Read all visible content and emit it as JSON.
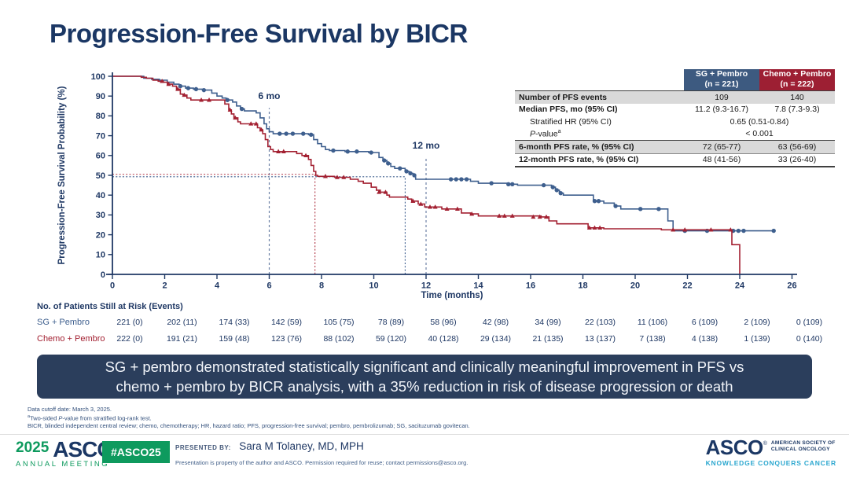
{
  "slide": {
    "title": "Progression-Free Survival by BICR"
  },
  "colors": {
    "navy": "#1f3864",
    "sg_blue": "#3e5f8e",
    "chemo_red": "#a32132",
    "banner_bg": "#2b3e5c",
    "asco_green": "#0e9a5e",
    "asco_teal": "#2ba7cf",
    "shade_gray": "#d9d9d9"
  },
  "chart_data": {
    "type": "line",
    "subtype": "kaplan-meier-step",
    "xlabel": "Time (months)",
    "ylabel": "Progression-Free Survival Probability (%)",
    "xlim": [
      0,
      26.5
    ],
    "ylim": [
      0,
      100
    ],
    "xticks": [
      0,
      2,
      4,
      6,
      8,
      10,
      12,
      14,
      16,
      18,
      20,
      22,
      24,
      26
    ],
    "yticks": [
      0,
      10,
      20,
      30,
      40,
      50,
      60,
      70,
      80,
      90,
      100
    ],
    "grid": false,
    "annotations": [
      {
        "label": "6 mo",
        "x": 6,
        "line_top": 84,
        "label_y": 88.5
      },
      {
        "label": "12 mo",
        "x": 12,
        "line_top": 59,
        "label_y": 63.5
      }
    ],
    "median_lines": [
      {
        "x": 7.75,
        "y": 50.5,
        "color": "#b03545",
        "series": "Chemo + Pembro",
        "median_months": 7.8
      },
      {
        "x": 11.2,
        "y": 49.3,
        "color": "#3e5f8e",
        "series": "SG + Pembro",
        "median_months": 11.2
      }
    ],
    "series": [
      {
        "id": "sg-pembro",
        "name": "SG + Pembro",
        "color": "#3e5f8e",
        "marker": "circle",
        "steps": [
          [
            0,
            100
          ],
          [
            1.2,
            99
          ],
          [
            1.5,
            98.5
          ],
          [
            1.8,
            98
          ],
          [
            2.1,
            97
          ],
          [
            2.35,
            96
          ],
          [
            2.55,
            95
          ],
          [
            2.8,
            94
          ],
          [
            3.1,
            93.5
          ],
          [
            3.45,
            93
          ],
          [
            3.8,
            91.5
          ],
          [
            4.0,
            90
          ],
          [
            4.2,
            89
          ],
          [
            4.35,
            88
          ],
          [
            4.6,
            87
          ],
          [
            4.75,
            85
          ],
          [
            4.9,
            83.5
          ],
          [
            5.05,
            82.5
          ],
          [
            5.5,
            81.5
          ],
          [
            5.65,
            79
          ],
          [
            5.8,
            76
          ],
          [
            5.9,
            73.5
          ],
          [
            6.0,
            72
          ],
          [
            6.15,
            71
          ],
          [
            7.5,
            70.5
          ],
          [
            7.7,
            68
          ],
          [
            7.85,
            66
          ],
          [
            8.0,
            64.5
          ],
          [
            8.15,
            63
          ],
          [
            8.3,
            62.5
          ],
          [
            8.9,
            62
          ],
          [
            9.8,
            61.5
          ],
          [
            10.2,
            59
          ],
          [
            10.35,
            57.5
          ],
          [
            10.5,
            56
          ],
          [
            10.65,
            54.5
          ],
          [
            10.8,
            53.5
          ],
          [
            11.2,
            52
          ],
          [
            11.35,
            51
          ],
          [
            11.5,
            50
          ],
          [
            11.6,
            48
          ],
          [
            13.7,
            47
          ],
          [
            14.0,
            46
          ],
          [
            15.1,
            45.5
          ],
          [
            15.5,
            45
          ],
          [
            16.8,
            44
          ],
          [
            16.95,
            42.5
          ],
          [
            17.1,
            41
          ],
          [
            17.25,
            40
          ],
          [
            18.4,
            37
          ],
          [
            18.8,
            36
          ],
          [
            19.2,
            34.5
          ],
          [
            19.45,
            33
          ],
          [
            21.25,
            27
          ],
          [
            21.45,
            22
          ],
          [
            25.35,
            22
          ]
        ],
        "censors": [
          [
            2.6,
            95
          ],
          [
            2.9,
            94
          ],
          [
            3.2,
            93.5
          ],
          [
            3.5,
            93
          ],
          [
            4.4,
            88
          ],
          [
            4.95,
            83.5
          ],
          [
            6.4,
            71
          ],
          [
            6.65,
            71
          ],
          [
            6.9,
            71
          ],
          [
            7.3,
            71
          ],
          [
            7.6,
            70.5
          ],
          [
            8.45,
            62.5
          ],
          [
            9.0,
            62
          ],
          [
            9.35,
            62
          ],
          [
            9.9,
            61.5
          ],
          [
            10.4,
            57.5
          ],
          [
            10.55,
            56
          ],
          [
            11.0,
            53.5
          ],
          [
            11.25,
            52
          ],
          [
            11.4,
            51
          ],
          [
            11.55,
            50
          ],
          [
            12.95,
            48
          ],
          [
            13.15,
            48
          ],
          [
            13.35,
            48
          ],
          [
            13.55,
            48
          ],
          [
            14.5,
            46
          ],
          [
            15.15,
            45.5
          ],
          [
            15.3,
            45.5
          ],
          [
            16.5,
            45
          ],
          [
            16.85,
            44
          ],
          [
            17.0,
            42.5
          ],
          [
            17.15,
            41
          ],
          [
            18.45,
            37
          ],
          [
            18.6,
            37
          ],
          [
            19.25,
            34.5
          ],
          [
            20.2,
            33
          ],
          [
            20.9,
            33
          ],
          [
            21.9,
            22
          ],
          [
            22.75,
            22
          ],
          [
            23.75,
            22
          ],
          [
            23.95,
            22
          ],
          [
            24.15,
            22
          ],
          [
            25.3,
            22
          ]
        ]
      },
      {
        "id": "chemo-pembro",
        "name": "Chemo + Pembro",
        "color": "#a32132",
        "marker": "triangle",
        "steps": [
          [
            0,
            100
          ],
          [
            1.1,
            99.5
          ],
          [
            1.3,
            99
          ],
          [
            1.55,
            98
          ],
          [
            1.75,
            97.5
          ],
          [
            1.95,
            97
          ],
          [
            2.1,
            96
          ],
          [
            2.3,
            95
          ],
          [
            2.45,
            93.5
          ],
          [
            2.6,
            91
          ],
          [
            2.7,
            90.5
          ],
          [
            2.85,
            89
          ],
          [
            3.0,
            88
          ],
          [
            4.3,
            86
          ],
          [
            4.45,
            83
          ],
          [
            4.55,
            81
          ],
          [
            4.65,
            79
          ],
          [
            4.8,
            77
          ],
          [
            4.9,
            76
          ],
          [
            5.55,
            74
          ],
          [
            5.65,
            73
          ],
          [
            5.75,
            71
          ],
          [
            5.85,
            68
          ],
          [
            5.95,
            64.5
          ],
          [
            6.05,
            63
          ],
          [
            6.15,
            62
          ],
          [
            7.05,
            61
          ],
          [
            7.25,
            60
          ],
          [
            7.5,
            58
          ],
          [
            7.6,
            55
          ],
          [
            7.7,
            52
          ],
          [
            7.78,
            50
          ],
          [
            7.85,
            49.5
          ],
          [
            8.5,
            49
          ],
          [
            9.1,
            48
          ],
          [
            9.4,
            47
          ],
          [
            9.6,
            46
          ],
          [
            9.9,
            44
          ],
          [
            10.1,
            42.5
          ],
          [
            10.25,
            41.5
          ],
          [
            10.5,
            40
          ],
          [
            10.6,
            39
          ],
          [
            11.3,
            38
          ],
          [
            11.45,
            37
          ],
          [
            11.7,
            35.5
          ],
          [
            11.95,
            34
          ],
          [
            12.6,
            33
          ],
          [
            13.35,
            31
          ],
          [
            13.7,
            30.5
          ],
          [
            14.0,
            29.5
          ],
          [
            16.4,
            29
          ],
          [
            16.7,
            27
          ],
          [
            17.0,
            25.5
          ],
          [
            18.2,
            23.5
          ],
          [
            18.8,
            23
          ],
          [
            21.0,
            22.5
          ],
          [
            23.7,
            15
          ],
          [
            24.0,
            0
          ]
        ],
        "censors": [
          [
            1.9,
            97.5
          ],
          [
            2.15,
            96
          ],
          [
            2.5,
            93.5
          ],
          [
            2.75,
            90.5
          ],
          [
            3.4,
            88
          ],
          [
            3.7,
            88
          ],
          [
            4.5,
            83
          ],
          [
            4.7,
            79
          ],
          [
            5.3,
            76
          ],
          [
            5.5,
            76
          ],
          [
            5.7,
            73
          ],
          [
            6.35,
            62
          ],
          [
            6.55,
            62
          ],
          [
            7.4,
            60
          ],
          [
            8.15,
            49.5
          ],
          [
            8.6,
            49
          ],
          [
            8.85,
            49
          ],
          [
            10.2,
            41.5
          ],
          [
            10.45,
            41.5
          ],
          [
            11.5,
            37
          ],
          [
            11.8,
            35.5
          ],
          [
            12.15,
            34
          ],
          [
            12.35,
            34
          ],
          [
            12.8,
            33
          ],
          [
            13.2,
            33
          ],
          [
            13.75,
            30.5
          ],
          [
            14.8,
            29.5
          ],
          [
            15.0,
            29.5
          ],
          [
            15.3,
            29.5
          ],
          [
            16.1,
            29
          ],
          [
            16.35,
            29
          ],
          [
            16.6,
            29
          ],
          [
            18.25,
            23.5
          ],
          [
            18.45,
            23.5
          ],
          [
            18.65,
            23.5
          ],
          [
            21.45,
            22.5
          ],
          [
            21.9,
            22.5
          ],
          [
            22.9,
            22.5
          ],
          [
            23.65,
            22.5
          ]
        ]
      }
    ]
  },
  "stats_table": {
    "col_headers": [
      {
        "line1": "SG + Pembro",
        "line2": "(n = 221)",
        "bg": "#3d5a80"
      },
      {
        "line1": "Chemo + Pembro",
        "line2": "(n = 222)",
        "bg": "#9d1f33"
      }
    ],
    "rows": [
      {
        "label": [
          {
            "t": "Number of PFS events"
          }
        ],
        "bold": true,
        "shade": true,
        "top_border": true,
        "values": [
          "109",
          "140"
        ]
      },
      {
        "label": [
          {
            "t": "Median PFS, mo (95% CI)"
          }
        ],
        "bold": true,
        "values": [
          "11.2 (9.3-16.7)",
          "7.8 (7.3-9.3)"
        ]
      },
      {
        "label": [
          {
            "t": "Stratified HR (95% CI)"
          }
        ],
        "indent": true,
        "merged": "0.65 (0.51-0.84)"
      },
      {
        "label": [
          {
            "t": "P",
            "i": true
          },
          {
            "t": "-value"
          },
          {
            "t": "a",
            "sup": true
          }
        ],
        "indent": true,
        "merged": "< 0.001"
      },
      {
        "label": [
          {
            "t": "6-month PFS rate, % (95% CI)"
          }
        ],
        "bold": true,
        "shade": true,
        "top_border": true,
        "values": [
          "72 (65-77)",
          "63 (56-69)"
        ]
      },
      {
        "label": [
          {
            "t": "12-month PFS rate, % (95% CI)"
          }
        ],
        "bold": true,
        "thin_top": true,
        "bottom_border": true,
        "values": [
          "48 (41-56)",
          "33 (26-40)"
        ]
      }
    ]
  },
  "risk_table": {
    "title": "No. of Patients Still at Risk (Events)",
    "rows": [
      {
        "name": "SG + Pembro",
        "color": "#3e5f8e",
        "values": [
          "221 (0)",
          "202 (11)",
          "174 (33)",
          "142 (59)",
          "105 (75)",
          "78 (89)",
          "58 (96)",
          "42 (98)",
          "34 (99)",
          "22 (103)",
          "11 (106)",
          "6 (109)",
          "2 (109)",
          "0 (109)"
        ]
      },
      {
        "name": "Chemo + Pembro",
        "color": "#a32132",
        "values": [
          "222 (0)",
          "191 (21)",
          "159 (48)",
          "123 (76)",
          "88 (102)",
          "59 (120)",
          "40 (128)",
          "29 (134)",
          "21 (135)",
          "13 (137)",
          "7 (138)",
          "4 (138)",
          "1 (139)",
          "0 (140)"
        ]
      }
    ]
  },
  "banner": {
    "lines": [
      "SG + pembro demonstrated statistically significant and clinically meaningful improvement in PFS vs",
      "chemo + pembro by BICR analysis, with a 35% reduction in risk of disease progression or death"
    ]
  },
  "footnotes": [
    [
      {
        "t": "Data cutoff date: March 3, 2025."
      }
    ],
    [
      {
        "t": "a",
        "sup": true
      },
      {
        "t": "Two-sided "
      },
      {
        "t": "P",
        "i": true
      },
      {
        "t": "-value from stratified log-rank test."
      }
    ],
    [
      {
        "t": "BICR, blinded independent central review; chemo, chemotherapy; HR, hazard ratio; PFS, progression-free survival; pembro, pembrolizumab; SG, sacituzumab govitecan."
      }
    ]
  ],
  "footer": {
    "left_logo": {
      "year": "2025",
      "asco": "ASCO",
      "mark": "®",
      "subtitle": "ANNUAL MEETING"
    },
    "hashtag": "#ASCO25",
    "presented_by_label": "PRESENTED BY:",
    "presenter": "Sara M Tolaney, MD, MPH",
    "disclaimer": "Presentation is property of the author and ASCO. Permission required for reuse; contact permissions@asco.org.",
    "right_logo": {
      "asco": "ASCO",
      "mark": "®",
      "lines": [
        "AMERICAN SOCIETY OF",
        "CLINICAL ONCOLOGY"
      ],
      "tagline": "KNOWLEDGE CONQUERS CANCER"
    }
  }
}
